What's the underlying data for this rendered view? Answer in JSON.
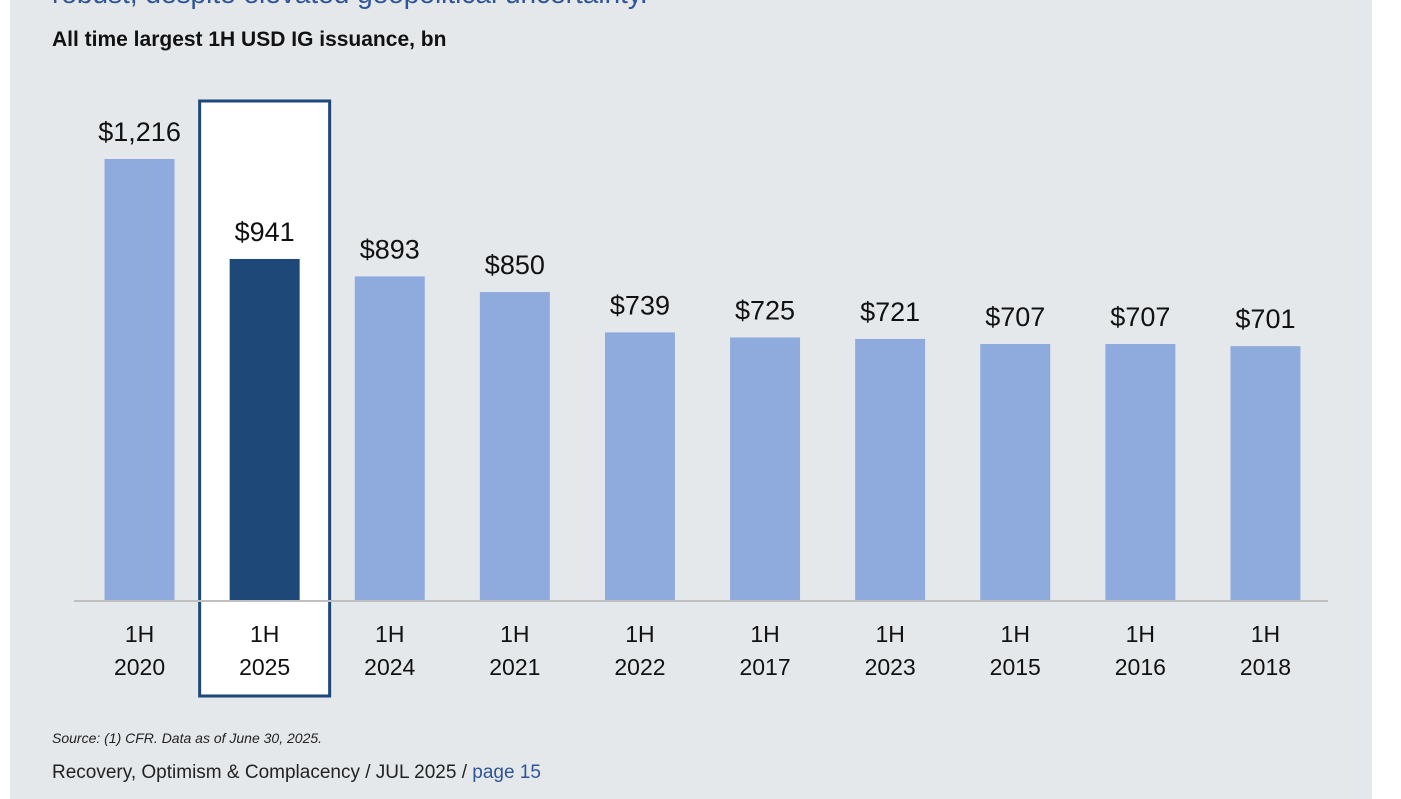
{
  "headline": "robust, despite elevated geopolitical uncertainty.",
  "chart_title": "All time largest 1H USD IG issuance, bn",
  "colors": {
    "bar": "#8fabde",
    "highlight_bar": "#1d4878",
    "highlight_box": "#1d4878",
    "axis": "#bfbfbf"
  },
  "chart_data": {
    "type": "bar",
    "title": "All time largest 1H USD IG issuance, bn",
    "categories": [
      "1H 2020",
      "1H 2025",
      "1H 2024",
      "1H 2021",
      "1H 2022",
      "1H 2017",
      "1H 2023",
      "1H 2015",
      "1H 2016",
      "1H 2018"
    ],
    "category_lines": [
      [
        "1H",
        "2020"
      ],
      [
        "1H",
        "2025"
      ],
      [
        "1H",
        "2024"
      ],
      [
        "1H",
        "2021"
      ],
      [
        "1H",
        "2022"
      ],
      [
        "1H",
        "2017"
      ],
      [
        "1H",
        "2023"
      ],
      [
        "1H",
        "2015"
      ],
      [
        "1H",
        "2016"
      ],
      [
        "1H",
        "2018"
      ]
    ],
    "values": [
      1216,
      941,
      893,
      850,
      739,
      725,
      721,
      707,
      707,
      701
    ],
    "value_labels": [
      "$1,216",
      "$941",
      "$893",
      "$850",
      "$739",
      "$725",
      "$721",
      "$707",
      "$707",
      "$701"
    ],
    "highlight_index": 1,
    "ylim": [
      0,
      1216
    ],
    "xlabel": "",
    "ylabel": "",
    "grid": false
  },
  "source": "Source: (1) CFR. Data as of June 30, 2025.",
  "footer": {
    "text": "Recovery, Optimism & Complacency / JUL 2025 / ",
    "page_link": "page 15"
  }
}
